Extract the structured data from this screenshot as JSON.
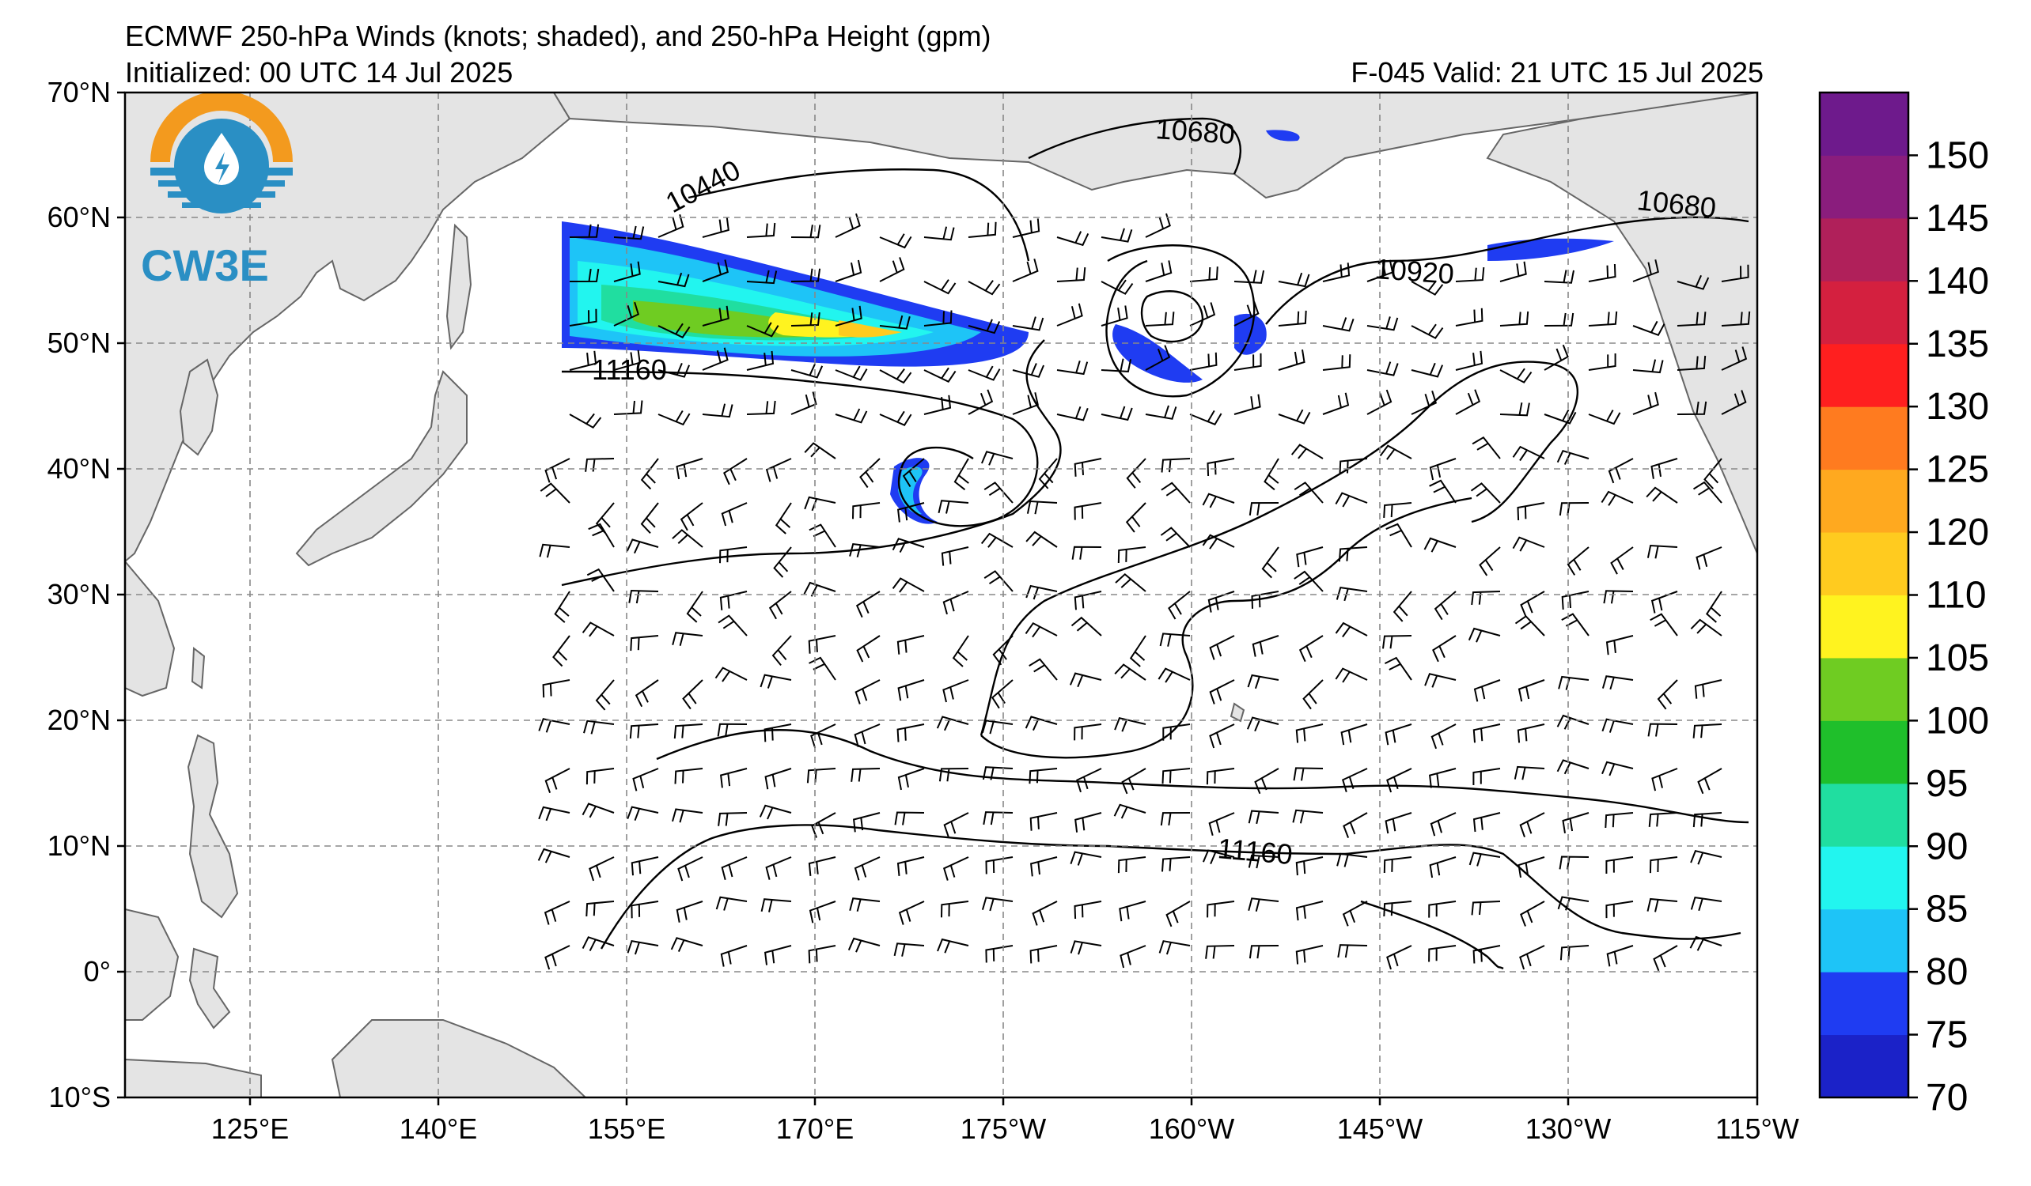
{
  "header": {
    "title": "ECMWF 250-hPa Winds (knots; shaded), and 250-hPa Height (gpm)",
    "initialized": "Initialized: 00 UTC 14 Jul 2025",
    "valid": "F-045  Valid: 21 UTC 15 Jul 2025"
  },
  "logo": {
    "text": "CW3E",
    "colors": {
      "orange": "#f39a1e",
      "blue": "#2a8fc4"
    }
  },
  "map": {
    "lon_ticks": [
      "125°E",
      "140°E",
      "155°E",
      "170°E",
      "175°W",
      "160°W",
      "145°W",
      "130°W",
      "115°W"
    ],
    "lat_ticks": [
      "70°N",
      "60°N",
      "50°N",
      "40°N",
      "30°N",
      "20°N",
      "10°N",
      "0°",
      "10°S"
    ],
    "land_color": "#e4e4e4",
    "coast_color": "#666666"
  },
  "contours": {
    "labels": [
      "10680",
      "10440",
      "10680",
      "10920",
      "11160",
      "11160"
    ]
  },
  "colorbar": {
    "levels": [
      70,
      75,
      80,
      85,
      90,
      95,
      100,
      105,
      110,
      120,
      125,
      130,
      135,
      140,
      145,
      150
    ],
    "labels": [
      "70",
      "75",
      "80",
      "85",
      "90",
      "95",
      "100",
      "105",
      "110",
      "120",
      "125",
      "130",
      "135",
      "140",
      "145",
      "150"
    ],
    "colors": [
      "#1b22c8",
      "#1f3cf2",
      "#1ec4f7",
      "#22f5ef",
      "#20dea0",
      "#1fbf2b",
      "#6fcc22",
      "#fff31f",
      "#ffcb1f",
      "#ffa91f",
      "#ff7b1f",
      "#ff1f1f",
      "#d4203f",
      "#b0205a",
      "#8a1d7d",
      "#6e1a8c"
    ]
  }
}
